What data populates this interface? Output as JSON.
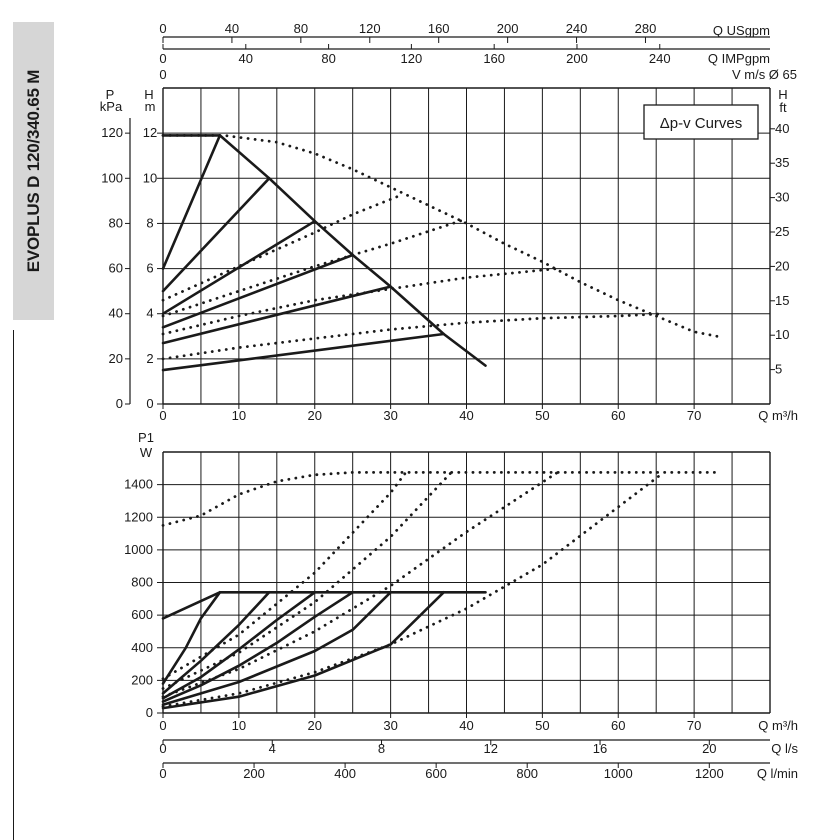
{
  "side_title": "EVOPLUS D 120/340.65 M",
  "colors": {
    "ink": "#1a1a1a",
    "grid": "#1a1a1a",
    "tab": "#d6d6d6"
  },
  "chart_data": [
    {
      "type": "line",
      "title": "",
      "legend_box": "Δp-v Curves",
      "x_axis": {
        "label": "Q m³/h",
        "range": [
          0,
          80
        ],
        "ticks": [
          0,
          10,
          20,
          30,
          40,
          50,
          60,
          70
        ]
      },
      "top_axes": [
        {
          "label": "Q USgpm",
          "ticks": [
            0,
            40,
            80,
            120,
            160,
            200,
            240,
            280
          ]
        },
        {
          "label": "Q IMPgpm",
          "ticks": [
            0,
            40,
            80,
            120,
            160,
            200,
            240
          ]
        },
        {
          "label": "V m/s Ø 65",
          "ticks": [
            0
          ]
        }
      ],
      "y_left_head": {
        "label": "H",
        "unit": "m",
        "range": [
          0,
          14
        ],
        "ticks": [
          0,
          2,
          4,
          6,
          8,
          10,
          12
        ]
      },
      "y_left_pressure": {
        "label": "P",
        "unit": "kPa",
        "ticks": [
          0,
          20,
          40,
          60,
          80,
          100,
          120
        ]
      },
      "y_right_head": {
        "label": "H",
        "unit": "ft",
        "ticks": [
          5,
          10,
          15,
          20,
          25,
          30,
          35,
          40
        ]
      },
      "grid": true,
      "series": [
        {
          "style": "solid",
          "role": "max-limit",
          "x": [
            0,
            7.5,
            14,
            20,
            25,
            30,
            37,
            42.5
          ],
          "y": [
            11.9,
            11.9,
            10,
            8.1,
            6.6,
            5.2,
            3.1,
            1.7
          ]
        },
        {
          "style": "solid",
          "x": [
            0,
            7.5
          ],
          "y": [
            6,
            11.9
          ]
        },
        {
          "style": "solid",
          "x": [
            0,
            14
          ],
          "y": [
            5,
            10
          ]
        },
        {
          "style": "solid",
          "x": [
            0,
            20
          ],
          "y": [
            4,
            8.1
          ]
        },
        {
          "style": "solid",
          "x": [
            0,
            25
          ],
          "y": [
            3.4,
            6.6
          ]
        },
        {
          "style": "solid",
          "x": [
            0,
            30
          ],
          "y": [
            2.7,
            5.2
          ]
        },
        {
          "style": "solid",
          "x": [
            0,
            37
          ],
          "y": [
            1.5,
            3.1
          ]
        },
        {
          "style": "dotted",
          "role": "max-curve",
          "x": [
            0,
            8,
            15,
            20,
            25,
            30,
            35,
            40,
            45,
            50,
            55,
            60,
            65,
            70,
            73
          ],
          "y": [
            11.9,
            11.9,
            11.6,
            11.1,
            10.4,
            9.6,
            8.8,
            8,
            7.1,
            6.3,
            5.4,
            4.6,
            3.9,
            3.2,
            3
          ]
        },
        {
          "style": "dotted",
          "x": [
            0,
            10,
            20,
            25,
            31
          ],
          "y": [
            4.6,
            6.1,
            7.6,
            8.4,
            9.2
          ]
        },
        {
          "style": "dotted",
          "x": [
            0,
            10,
            20,
            30,
            40
          ],
          "y": [
            3.9,
            5,
            6.1,
            7.1,
            8.2
          ]
        },
        {
          "style": "dotted",
          "x": [
            0,
            10,
            20,
            30,
            40,
            52
          ],
          "y": [
            3.1,
            3.9,
            4.6,
            5.1,
            5.6,
            6
          ]
        },
        {
          "style": "dotted",
          "x": [
            0,
            10,
            20,
            30,
            40,
            50,
            60,
            66
          ],
          "y": [
            2,
            2.5,
            2.9,
            3.3,
            3.6,
            3.8,
            3.9,
            4
          ]
        }
      ]
    },
    {
      "type": "line",
      "title": "",
      "x_axis": {
        "label": "Q m³/h",
        "range": [
          0,
          80
        ],
        "ticks": [
          0,
          10,
          20,
          30,
          40,
          50,
          60,
          70
        ]
      },
      "bottom_axes": [
        {
          "label": "Q l/s",
          "ticks": [
            0,
            4,
            8,
            12,
            16,
            20
          ]
        },
        {
          "label": "Q l/min",
          "ticks": [
            0,
            200,
            400,
            600,
            800,
            1000,
            1200
          ]
        }
      ],
      "y_axis": {
        "label": "P1",
        "unit": "W",
        "range": [
          0,
          1600
        ],
        "ticks": [
          0,
          200,
          400,
          600,
          800,
          1000,
          1200,
          1400
        ]
      },
      "grid": true,
      "series": [
        {
          "style": "solid",
          "role": "max-limit",
          "x": [
            0,
            7.5,
            42.5
          ],
          "y": [
            580,
            740,
            740
          ]
        },
        {
          "style": "solid",
          "x": [
            0,
            3,
            5,
            7.5
          ],
          "y": [
            180,
            400,
            580,
            740
          ]
        },
        {
          "style": "solid",
          "x": [
            0,
            5,
            10,
            14
          ],
          "y": [
            120,
            320,
            540,
            740
          ]
        },
        {
          "style": "solid",
          "x": [
            0,
            5,
            10,
            15,
            20
          ],
          "y": [
            90,
            220,
            390,
            570,
            740
          ]
        },
        {
          "style": "solid",
          "x": [
            0,
            5,
            10,
            15,
            20,
            25
          ],
          "y": [
            70,
            170,
            290,
            430,
            590,
            740
          ]
        },
        {
          "style": "solid",
          "x": [
            0,
            10,
            20,
            25,
            30
          ],
          "y": [
            50,
            190,
            380,
            510,
            740
          ]
        },
        {
          "style": "solid",
          "x": [
            0,
            10,
            20,
            30,
            37
          ],
          "y": [
            30,
            100,
            230,
            420,
            740
          ]
        },
        {
          "style": "dotted",
          "role": "max-curve",
          "x": [
            0,
            5,
            10,
            15,
            20,
            25,
            30,
            40,
            50,
            60,
            73
          ],
          "y": [
            1150,
            1210,
            1340,
            1420,
            1460,
            1475,
            1475,
            1475,
            1475,
            1475,
            1475
          ]
        },
        {
          "style": "dotted",
          "x": [
            0,
            10,
            20,
            30,
            32
          ],
          "y": [
            210,
            480,
            860,
            1350,
            1475
          ]
        },
        {
          "style": "dotted",
          "x": [
            0,
            10,
            20,
            30,
            38
          ],
          "y": [
            150,
            370,
            680,
            1080,
            1475
          ]
        },
        {
          "style": "dotted",
          "x": [
            0,
            10,
            20,
            30,
            40,
            52
          ],
          "y": [
            100,
            270,
            500,
            780,
            1110,
            1475
          ]
        },
        {
          "style": "dotted",
          "x": [
            0,
            10,
            20,
            30,
            40,
            50,
            66
          ],
          "y": [
            40,
            120,
            250,
            420,
            640,
            910,
            1475
          ]
        }
      ]
    }
  ]
}
